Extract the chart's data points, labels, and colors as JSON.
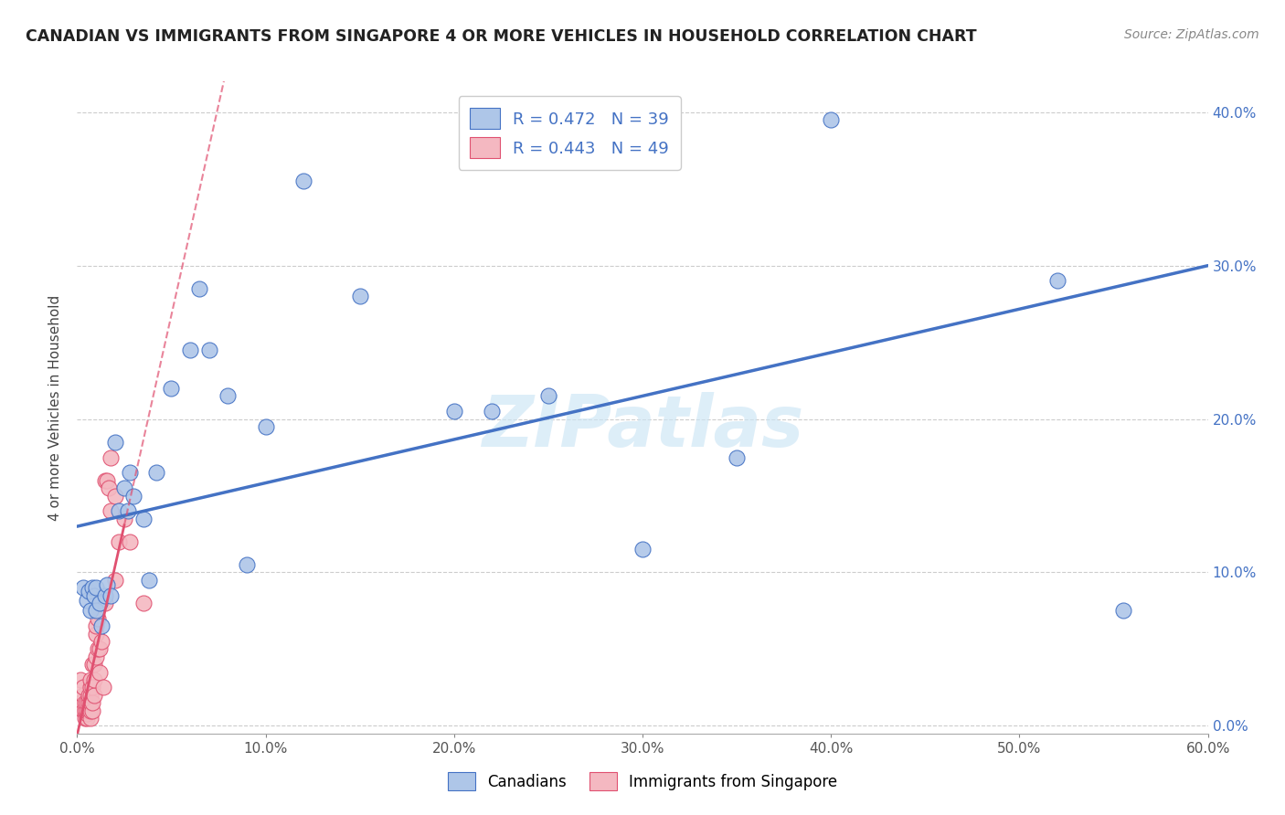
{
  "title": "CANADIAN VS IMMIGRANTS FROM SINGAPORE 4 OR MORE VEHICLES IN HOUSEHOLD CORRELATION CHART",
  "source": "Source: ZipAtlas.com",
  "ylabel": "4 or more Vehicles in Household",
  "xlim": [
    0.0,
    0.6
  ],
  "ylim": [
    -0.005,
    0.42
  ],
  "xticks": [
    0.0,
    0.1,
    0.2,
    0.3,
    0.4,
    0.5,
    0.6
  ],
  "yticks": [
    0.0,
    0.1,
    0.2,
    0.3,
    0.4
  ],
  "watermark": "ZIPatlas",
  "canadians_color": "#aec6e8",
  "singapore_color": "#f4b8c1",
  "trend_canadian_color": "#4472c4",
  "trend_singapore_color": "#e05070",
  "canadians_x": [
    0.003,
    0.005,
    0.006,
    0.007,
    0.008,
    0.009,
    0.01,
    0.01,
    0.012,
    0.013,
    0.015,
    0.016,
    0.018,
    0.02,
    0.022,
    0.025,
    0.027,
    0.028,
    0.03,
    0.035,
    0.038,
    0.042,
    0.05,
    0.06,
    0.065,
    0.07,
    0.08,
    0.09,
    0.1,
    0.12,
    0.15,
    0.2,
    0.22,
    0.25,
    0.3,
    0.35,
    0.4,
    0.52,
    0.555
  ],
  "canadians_y": [
    0.09,
    0.082,
    0.088,
    0.075,
    0.09,
    0.085,
    0.09,
    0.075,
    0.08,
    0.065,
    0.085,
    0.092,
    0.085,
    0.185,
    0.14,
    0.155,
    0.14,
    0.165,
    0.15,
    0.135,
    0.095,
    0.165,
    0.22,
    0.245,
    0.285,
    0.245,
    0.215,
    0.105,
    0.195,
    0.355,
    0.28,
    0.205,
    0.205,
    0.215,
    0.115,
    0.175,
    0.395,
    0.29,
    0.075
  ],
  "singapore_x": [
    0.002,
    0.002,
    0.003,
    0.003,
    0.003,
    0.004,
    0.004,
    0.004,
    0.005,
    0.005,
    0.005,
    0.005,
    0.006,
    0.006,
    0.006,
    0.007,
    0.007,
    0.007,
    0.007,
    0.007,
    0.007,
    0.008,
    0.008,
    0.008,
    0.008,
    0.009,
    0.009,
    0.009,
    0.01,
    0.01,
    0.01,
    0.011,
    0.011,
    0.012,
    0.012,
    0.013,
    0.014,
    0.015,
    0.015,
    0.016,
    0.017,
    0.018,
    0.018,
    0.02,
    0.02,
    0.022,
    0.025,
    0.028,
    0.035
  ],
  "singapore_y": [
    0.015,
    0.03,
    0.01,
    0.02,
    0.025,
    0.005,
    0.01,
    0.015,
    0.005,
    0.008,
    0.01,
    0.015,
    0.01,
    0.015,
    0.02,
    0.005,
    0.01,
    0.015,
    0.02,
    0.025,
    0.03,
    0.01,
    0.015,
    0.025,
    0.04,
    0.02,
    0.03,
    0.04,
    0.045,
    0.06,
    0.065,
    0.05,
    0.07,
    0.035,
    0.05,
    0.055,
    0.025,
    0.08,
    0.16,
    0.16,
    0.155,
    0.14,
    0.175,
    0.095,
    0.15,
    0.12,
    0.135,
    0.12,
    0.08
  ],
  "R_canadian": 0.472,
  "R_singapore": 0.443,
  "N_canadian": 39,
  "N_singapore": 49,
  "legend_top": [
    {
      "label": "R = 0.472   N = 39",
      "facecolor": "#aec6e8",
      "edgecolor": "#4472c4"
    },
    {
      "label": "R = 0.443   N = 49",
      "facecolor": "#f4b8c1",
      "edgecolor": "#e05070"
    }
  ],
  "legend_bottom": [
    {
      "label": "Canadians",
      "facecolor": "#aec6e8",
      "edgecolor": "#4472c4"
    },
    {
      "label": "Immigrants from Singapore",
      "facecolor": "#f4b8c1",
      "edgecolor": "#e05070"
    }
  ]
}
